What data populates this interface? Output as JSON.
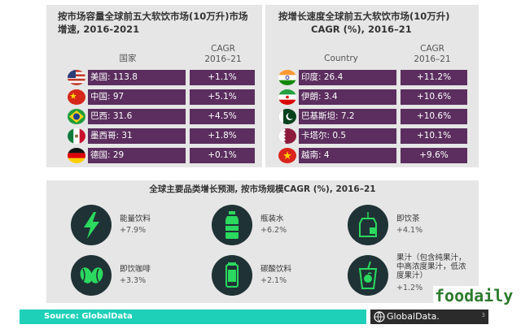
{
  "left_panel": {
    "title_line1": "按市场容量全球前五大软饮市场(10万升)市场",
    "title_line2": "增速, 2016-2021",
    "col_country": "国家",
    "col_cagr_line1": "CAGR",
    "col_cagr_line2": "2016–21",
    "rows": [
      {
        "country": "美国: 113.8",
        "cagr": "+1.1%",
        "flag": "usa-flag-icon"
      },
      {
        "country": "中国: 97",
        "cagr": "+5.1%",
        "flag": "china-flag-icon"
      },
      {
        "country": "巴西: 31.6",
        "cagr": "+4.5%",
        "flag": "brazil-flag-icon"
      },
      {
        "country": "墨西哥: 31",
        "cagr": "+1.8%",
        "flag": "mexico-flag-icon"
      },
      {
        "country": "德国: 29",
        "cagr": "+0.1%",
        "flag": "germany-flag-icon"
      }
    ]
  },
  "right_panel": {
    "title_line1": "按增长速度全球前五大软饮市场(10万升)",
    "title_line2": "CAGR (%), 2016–21",
    "col_country": "Country",
    "col_cagr_line1": "CAGR",
    "col_cagr_line2": "2016–21",
    "rows": [
      {
        "country": "印度: 26.4",
        "cagr": "+11.2%",
        "flag": "india-flag-icon"
      },
      {
        "country": "伊朗: 3.4",
        "cagr": "+10.6%",
        "flag": "iran-flag-icon"
      },
      {
        "country": "巴基斯坦: 7.2",
        "cagr": "+10.6%",
        "flag": "pakistan-flag-icon"
      },
      {
        "country": "卡塔尔: 0.5",
        "cagr": "+10.1%",
        "flag": "qatar-flag-icon"
      },
      {
        "country": "越南: 4",
        "cagr": "+9.6%",
        "flag": "vietnam-flag-icon"
      }
    ]
  },
  "bottom_panel": {
    "title": "全球主要品类增长预测, 按市场规模CAGR (%), 2016–21",
    "categories": [
      {
        "name": "能量饮料",
        "value": "+7.9%",
        "icon": "lightning-bolt-icon"
      },
      {
        "name": "瓶装水",
        "value": "+6.2%",
        "icon": "water-bottle-icon"
      },
      {
        "name": "即饮茶",
        "value": "+4.1%",
        "icon": "tea-bag-icon"
      },
      {
        "name": "即饮咖啡",
        "value": "+3.3%",
        "icon": "coffee-beans-icon"
      },
      {
        "name": "碳酸饮料",
        "value": "+2.1%",
        "icon": "soda-can-icon"
      },
      {
        "name_line1": "果汁（包含纯果汁，",
        "name_line2": "中高浓度果汁，低浓",
        "name_line3": "度果汁）",
        "value": "+1.2%",
        "icon": "juice-cup-icon"
      }
    ]
  },
  "footer": {
    "source": "Source: GlobalData",
    "logo": "GlobalData.",
    "page": "3"
  },
  "watermark": "foodaily",
  "colors": {
    "bar": "#5b2e5f",
    "panel": "#e6e6e6",
    "icon_circle": "#1f3235",
    "icon_green": "#2bd95f",
    "footer": "#1ed0b8"
  }
}
